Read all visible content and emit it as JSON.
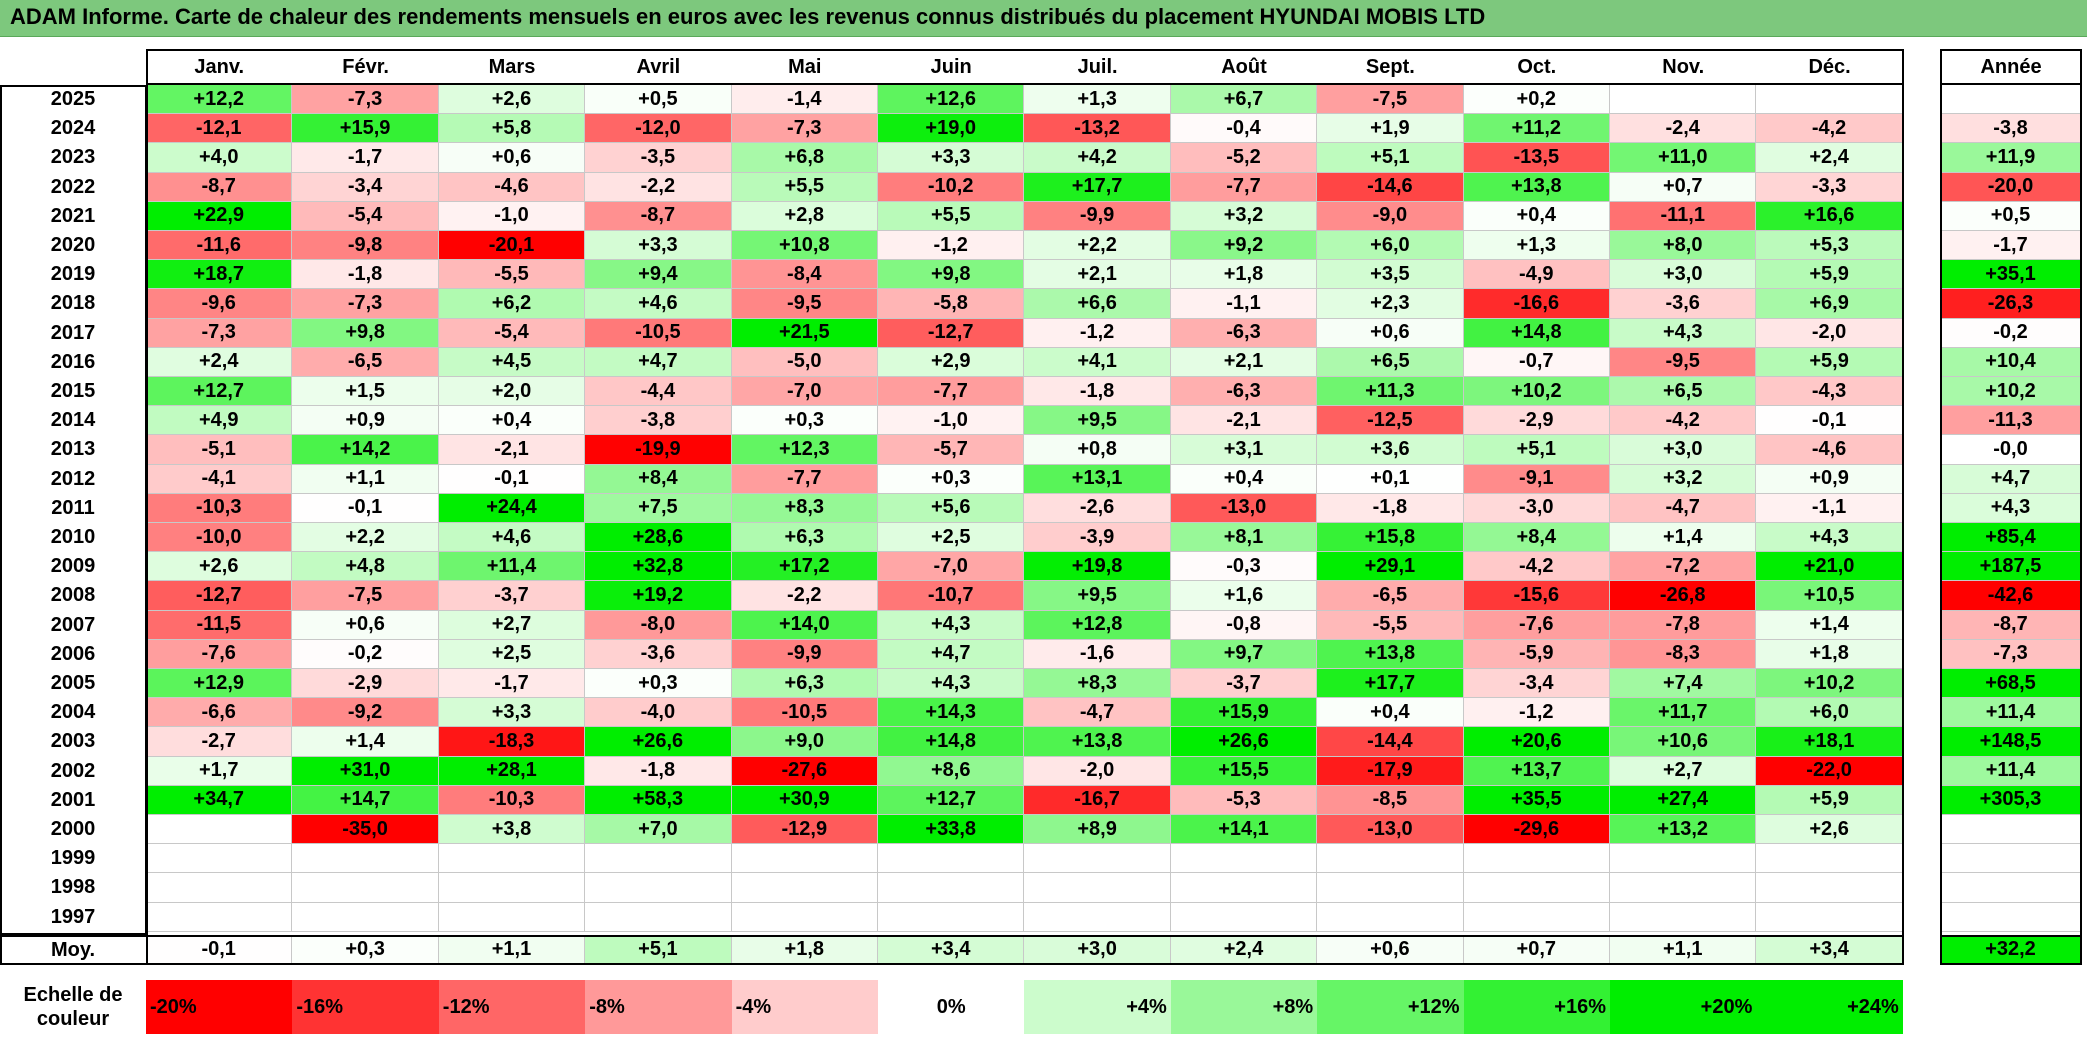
{
  "title": "ADAM Informe. Carte de chaleur des rendements mensuels en euros avec les revenus connus distribués du placement HYUNDAI MOBIS LTD",
  "chart_data": {
    "type": "heatmap",
    "title": "ADAM Informe. Carte de chaleur des rendements mensuels en euros avec les revenus connus distribués du placement HYUNDAI MOBIS LTD",
    "columns": [
      "Janv.",
      "Févr.",
      "Mars",
      "Avril",
      "Mai",
      "Juin",
      "Juil.",
      "Août",
      "Sept.",
      "Oct.",
      "Nov.",
      "Déc."
    ],
    "year_column_label": "Année",
    "rows": [
      {
        "year": "2025",
        "values": [
          "+12,2",
          "-7,3",
          "+2,6",
          "+0,5",
          "-1,4",
          "+12,6",
          "+1,3",
          "+6,7",
          "-7,5",
          "+0,2",
          "",
          ""
        ],
        "annual": ""
      },
      {
        "year": "2024",
        "values": [
          "-12,1",
          "+15,9",
          "+5,8",
          "-12,0",
          "-7,3",
          "+19,0",
          "-13,2",
          "-0,4",
          "+1,9",
          "+11,2",
          "-2,4",
          "-4,2"
        ],
        "annual": "-3,8"
      },
      {
        "year": "2023",
        "values": [
          "+4,0",
          "-1,7",
          "+0,6",
          "-3,5",
          "+6,8",
          "+3,3",
          "+4,2",
          "-5,2",
          "+5,1",
          "-13,5",
          "+11,0",
          "+2,4"
        ],
        "annual": "+11,9"
      },
      {
        "year": "2022",
        "values": [
          "-8,7",
          "-3,4",
          "-4,6",
          "-2,2",
          "+5,5",
          "-10,2",
          "+17,7",
          "-7,7",
          "-14,6",
          "+13,8",
          "+0,7",
          "-3,3"
        ],
        "annual": "-20,0"
      },
      {
        "year": "2021",
        "values": [
          "+22,9",
          "-5,4",
          "-1,0",
          "-8,7",
          "+2,8",
          "+5,5",
          "-9,9",
          "+3,2",
          "-9,0",
          "+0,4",
          "-11,1",
          "+16,6"
        ],
        "annual": "+0,5"
      },
      {
        "year": "2020",
        "values": [
          "-11,6",
          "-9,8",
          "-20,1",
          "+3,3",
          "+10,8",
          "-1,2",
          "+2,2",
          "+9,2",
          "+6,0",
          "+1,3",
          "+8,0",
          "+5,3"
        ],
        "annual": "-1,7"
      },
      {
        "year": "2019",
        "values": [
          "+18,7",
          "-1,8",
          "-5,5",
          "+9,4",
          "-8,4",
          "+9,8",
          "+2,1",
          "+1,8",
          "+3,5",
          "-4,9",
          "+3,0",
          "+5,9"
        ],
        "annual": "+35,1"
      },
      {
        "year": "2018",
        "values": [
          "-9,6",
          "-7,3",
          "+6,2",
          "+4,6",
          "-9,5",
          "-5,8",
          "+6,6",
          "-1,1",
          "+2,3",
          "-16,6",
          "-3,6",
          "+6,9"
        ],
        "annual": "-26,3"
      },
      {
        "year": "2017",
        "values": [
          "-7,3",
          "+9,8",
          "-5,4",
          "-10,5",
          "+21,5",
          "-12,7",
          "-1,2",
          "-6,3",
          "+0,6",
          "+14,8",
          "+4,3",
          "-2,0"
        ],
        "annual": "-0,2"
      },
      {
        "year": "2016",
        "values": [
          "+2,4",
          "-6,5",
          "+4,5",
          "+4,7",
          "-5,0",
          "+2,9",
          "+4,1",
          "+2,1",
          "+6,5",
          "-0,7",
          "-9,5",
          "+5,9"
        ],
        "annual": "+10,4"
      },
      {
        "year": "2015",
        "values": [
          "+12,7",
          "+1,5",
          "+2,0",
          "-4,4",
          "-7,0",
          "-7,7",
          "-1,8",
          "-6,3",
          "+11,3",
          "+10,2",
          "+6,5",
          "-4,3"
        ],
        "annual": "+10,2"
      },
      {
        "year": "2014",
        "values": [
          "+4,9",
          "+0,9",
          "+0,4",
          "-3,8",
          "+0,3",
          "-1,0",
          "+9,5",
          "-2,1",
          "-12,5",
          "-2,9",
          "-4,2",
          "-0,1"
        ],
        "annual": "-11,3"
      },
      {
        "year": "2013",
        "values": [
          "-5,1",
          "+14,2",
          "-2,1",
          "-19,9",
          "+12,3",
          "-5,7",
          "+0,8",
          "+3,1",
          "+3,6",
          "+5,1",
          "+3,0",
          "-4,6"
        ],
        "annual": "-0,0"
      },
      {
        "year": "2012",
        "values": [
          "-4,1",
          "+1,1",
          "-0,1",
          "+8,4",
          "-7,7",
          "+0,3",
          "+13,1",
          "+0,4",
          "+0,1",
          "-9,1",
          "+3,2",
          "+0,9"
        ],
        "annual": "+4,7"
      },
      {
        "year": "2011",
        "values": [
          "-10,3",
          "-0,1",
          "+24,4",
          "+7,5",
          "+8,3",
          "+5,6",
          "-2,6",
          "-13,0",
          "-1,8",
          "-3,0",
          "-4,7",
          "-1,1"
        ],
        "annual": "+4,3"
      },
      {
        "year": "2010",
        "values": [
          "-10,0",
          "+2,2",
          "+4,6",
          "+28,6",
          "+6,3",
          "+2,5",
          "-3,9",
          "+8,1",
          "+15,8",
          "+8,4",
          "+1,4",
          "+4,3"
        ],
        "annual": "+85,4"
      },
      {
        "year": "2009",
        "values": [
          "+2,6",
          "+4,8",
          "+11,4",
          "+32,8",
          "+17,2",
          "-7,0",
          "+19,8",
          "-0,3",
          "+29,1",
          "-4,2",
          "-7,2",
          "+21,0"
        ],
        "annual": "+187,5"
      },
      {
        "year": "2008",
        "values": [
          "-12,7",
          "-7,5",
          "-3,7",
          "+19,2",
          "-2,2",
          "-10,7",
          "+9,5",
          "+1,6",
          "-6,5",
          "-15,6",
          "-26,8",
          "+10,5"
        ],
        "annual": "-42,6"
      },
      {
        "year": "2007",
        "values": [
          "-11,5",
          "+0,6",
          "+2,7",
          "-8,0",
          "+14,0",
          "+4,3",
          "+12,8",
          "-0,8",
          "-5,5",
          "-7,6",
          "-7,8",
          "+1,4"
        ],
        "annual": "-8,7"
      },
      {
        "year": "2006",
        "values": [
          "-7,6",
          "-0,2",
          "+2,5",
          "-3,6",
          "-9,9",
          "+4,7",
          "-1,6",
          "+9,7",
          "+13,8",
          "-5,9",
          "-8,3",
          "+1,8"
        ],
        "annual": "-7,3"
      },
      {
        "year": "2005",
        "values": [
          "+12,9",
          "-2,9",
          "-1,7",
          "+0,3",
          "+6,3",
          "+4,3",
          "+8,3",
          "-3,7",
          "+17,7",
          "-3,4",
          "+7,4",
          "+10,2"
        ],
        "annual": "+68,5"
      },
      {
        "year": "2004",
        "values": [
          "-6,6",
          "-9,2",
          "+3,3",
          "-4,0",
          "-10,5",
          "+14,3",
          "-4,7",
          "+15,9",
          "+0,4",
          "-1,2",
          "+11,7",
          "+6,0"
        ],
        "annual": "+11,4"
      },
      {
        "year": "2003",
        "values": [
          "-2,7",
          "+1,4",
          "-18,3",
          "+26,6",
          "+9,0",
          "+14,8",
          "+13,8",
          "+26,6",
          "-14,4",
          "+20,6",
          "+10,6",
          "+18,1"
        ],
        "annual": "+148,5"
      },
      {
        "year": "2002",
        "values": [
          "+1,7",
          "+31,0",
          "+28,1",
          "-1,8",
          "-27,6",
          "+8,6",
          "-2,0",
          "+15,5",
          "-17,9",
          "+13,7",
          "+2,7",
          "-22,0"
        ],
        "annual": "+11,4"
      },
      {
        "year": "2001",
        "values": [
          "+34,7",
          "+14,7",
          "-10,3",
          "+58,3",
          "+30,9",
          "+12,7",
          "-16,7",
          "-5,3",
          "-8,5",
          "+35,5",
          "+27,4",
          "+5,9"
        ],
        "annual": "+305,3"
      },
      {
        "year": "2000",
        "values": [
          "",
          "-35,0",
          "+3,8",
          "+7,0",
          "-12,9",
          "+33,8",
          "+8,9",
          "+14,1",
          "-13,0",
          "-29,6",
          "+13,2",
          "+2,6"
        ],
        "annual": ""
      },
      {
        "year": "1999",
        "values": [
          "",
          "",
          "",
          "",
          "",
          "",
          "",
          "",
          "",
          "",
          "",
          ""
        ],
        "annual": ""
      },
      {
        "year": "1998",
        "values": [
          "",
          "",
          "",
          "",
          "",
          "",
          "",
          "",
          "",
          "",
          "",
          ""
        ],
        "annual": ""
      },
      {
        "year": "1997",
        "values": [
          "",
          "",
          "",
          "",
          "",
          "",
          "",
          "",
          "",
          "",
          "",
          ""
        ],
        "annual": ""
      }
    ],
    "average": {
      "label": "Moy.",
      "values": [
        "-0,1",
        "+0,3",
        "+1,1",
        "+5,1",
        "+1,8",
        "+3,4",
        "+3,0",
        "+2,4",
        "+0,6",
        "+0,7",
        "+1,1",
        "+3,4"
      ],
      "annual": "+32,2"
    },
    "scale": {
      "label": "Echelle de couleur",
      "stops": [
        "-20%",
        "-16%",
        "-12%",
        "-8%",
        "-4%",
        "0%",
        "+4%",
        "+8%",
        "+12%",
        "+16%",
        "+20%",
        "+24%"
      ],
      "stop_values": [
        -20,
        -16,
        -12,
        -8,
        -4,
        0,
        4,
        8,
        12,
        16,
        20,
        24
      ]
    },
    "colors": {
      "negative_max": "#ff0000",
      "neutral": "#ffffff",
      "positive_max": "#00ee00",
      "title_bar": "#7dc87d"
    }
  }
}
